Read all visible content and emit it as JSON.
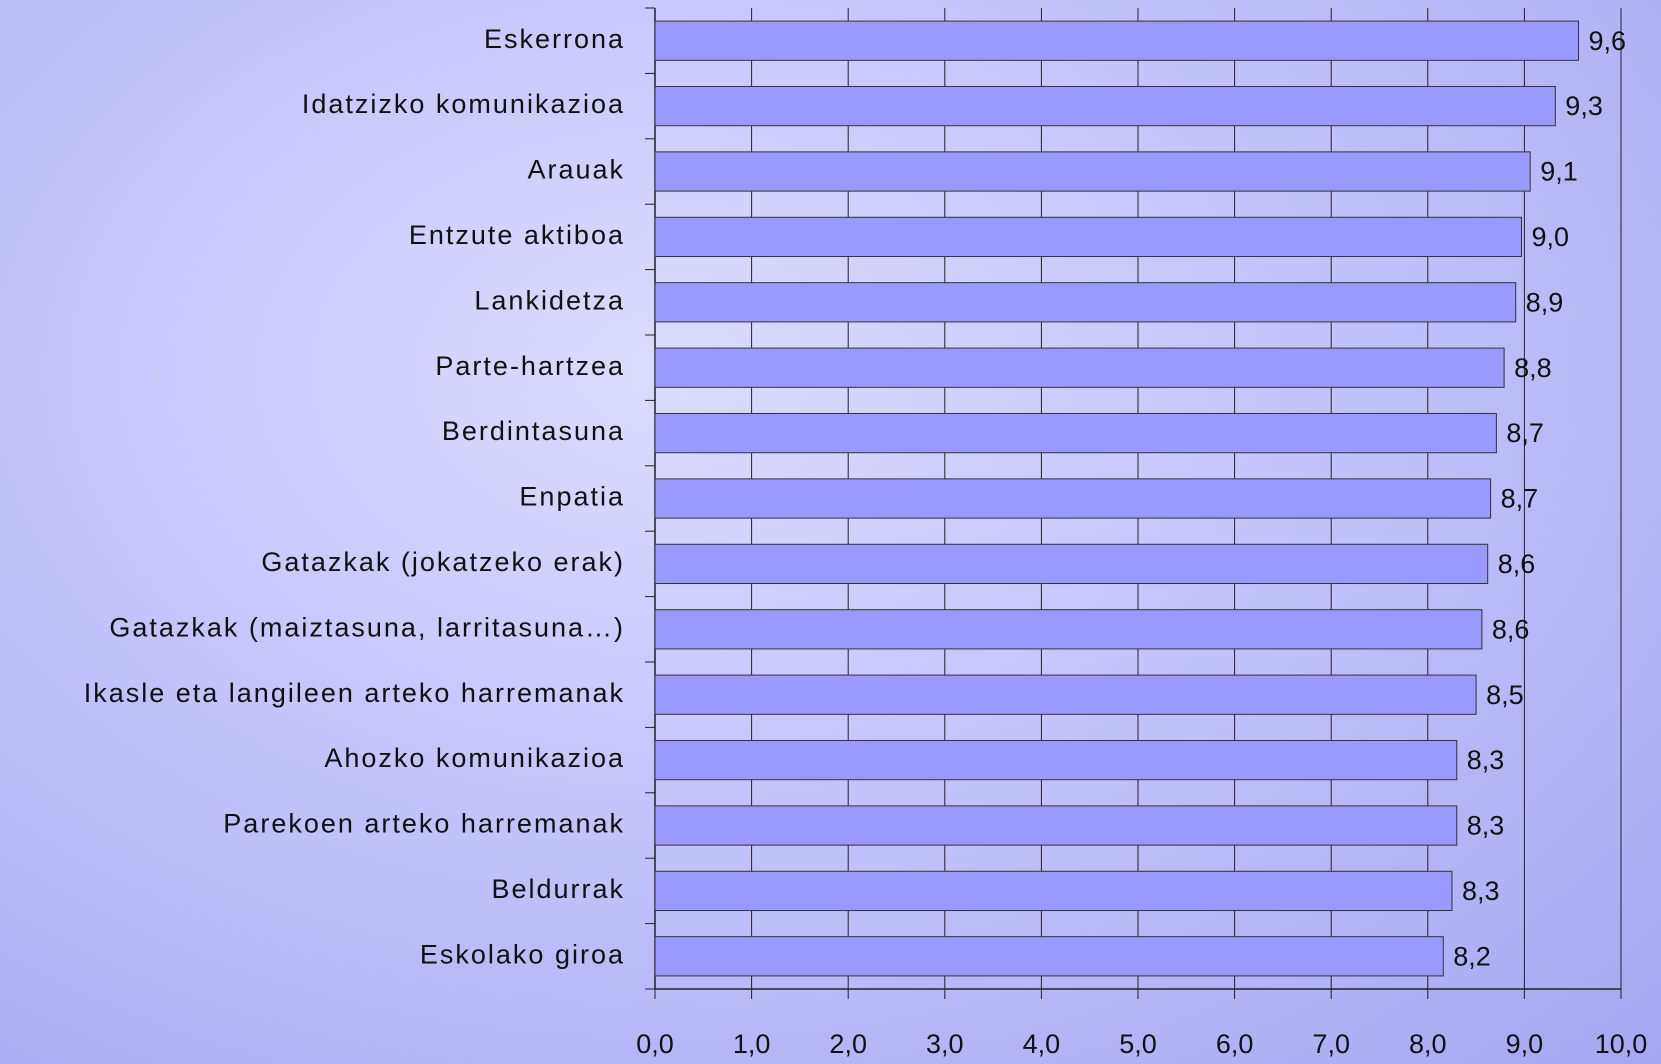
{
  "chart_data": {
    "type": "bar",
    "orientation": "horizontal",
    "categories": [
      "Eskerrona",
      "Idatzizko komunikazioa",
      "Arauak",
      "Entzute aktiboa",
      "Lankidetza",
      "Parte-hartzea",
      "Berdintasuna",
      "Enpatia",
      "Gatazkak (jokatzeko erak)",
      "Gatazkak (maiztasuna, larritasuna…)",
      "Ikasle eta langileen arteko harremanak",
      "Ahozko komunikazioa",
      "Parekoen arteko harremanak",
      "Beldurrak",
      "Eskolako giroa"
    ],
    "values": [
      9.56,
      9.32,
      9.06,
      8.97,
      8.91,
      8.79,
      8.71,
      8.65,
      8.62,
      8.56,
      8.5,
      8.3,
      8.3,
      8.25,
      8.16
    ],
    "value_labels": [
      "9,6",
      "9,3",
      "9,1",
      "9,0",
      "8,9",
      "8,8",
      "8,7",
      "8,7",
      "8,6",
      "8,6",
      "8,5",
      "8,3",
      "8,3",
      "8,3",
      "8,2"
    ],
    "color": "#9999ff",
    "xlim": [
      0,
      10
    ],
    "xticks": [
      {
        "value": 0,
        "label": "0,0"
      },
      {
        "value": 1,
        "label": "1,0"
      },
      {
        "value": 2,
        "label": "2,0"
      },
      {
        "value": 3,
        "label": "3,0"
      },
      {
        "value": 4,
        "label": "4,0"
      },
      {
        "value": 5,
        "label": "5,0"
      },
      {
        "value": 6,
        "label": "6,0"
      },
      {
        "value": 7,
        "label": "7,0"
      },
      {
        "value": 8,
        "label": "8,0"
      },
      {
        "value": 9,
        "label": "9,0"
      },
      {
        "value": 10,
        "label": "10,0"
      }
    ],
    "grid": true
  }
}
